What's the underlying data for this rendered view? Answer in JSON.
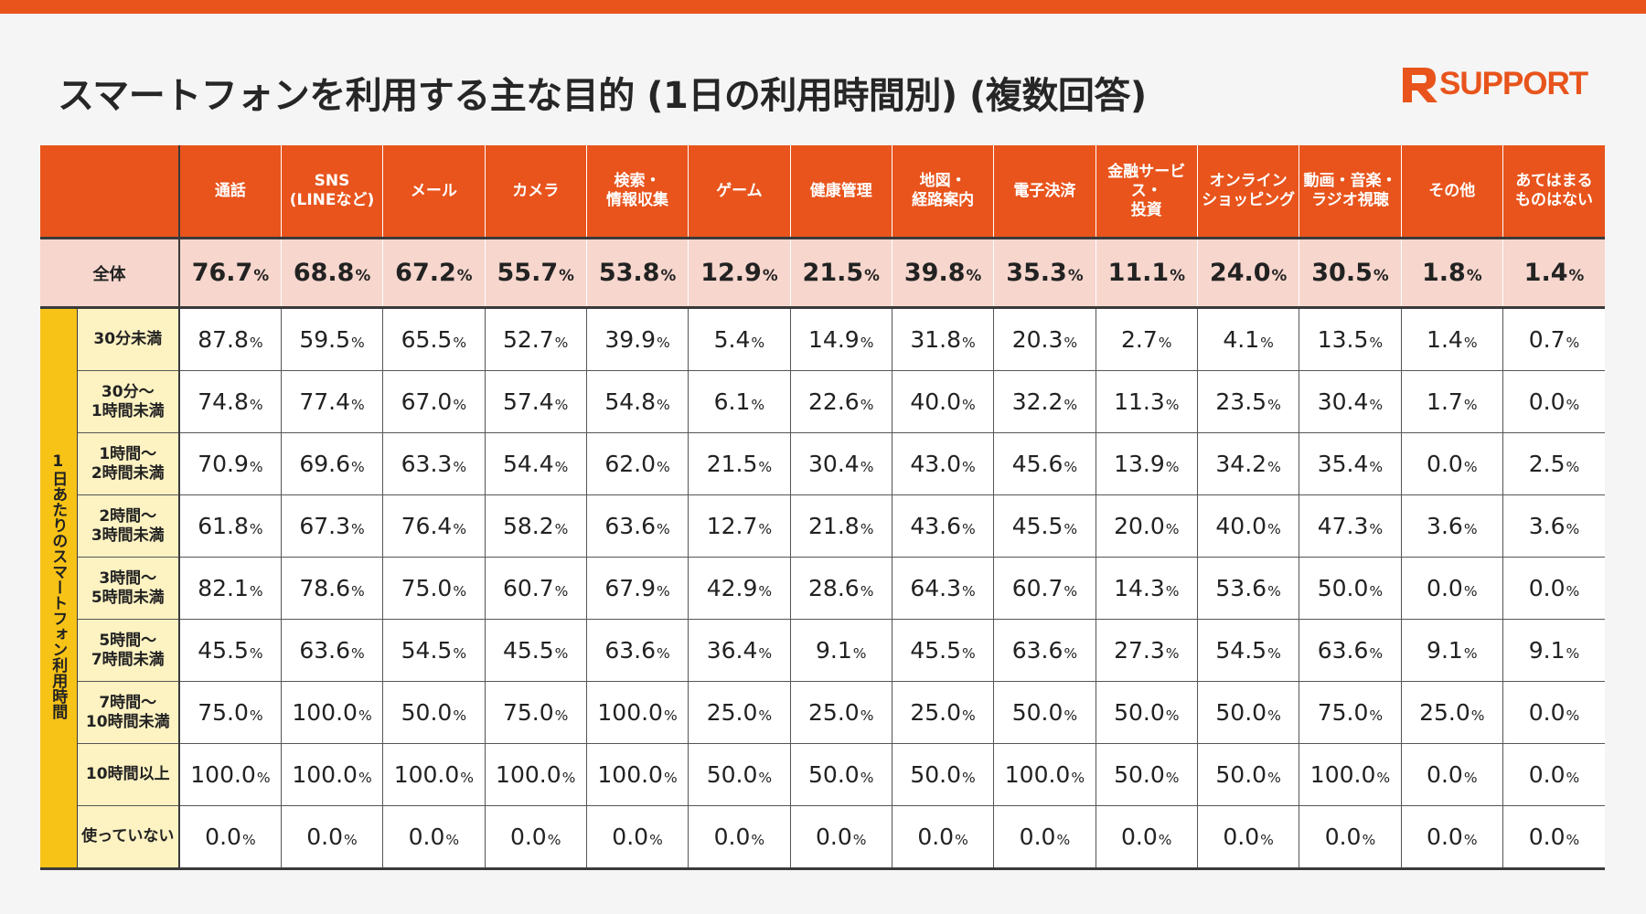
{
  "title": "スマートフォンを利用する主な目的 (1日の利用時間別) (複数回答)",
  "logo_text": "SUPPORT",
  "colors": {
    "accent": "#e8541c",
    "group": "#f7c317",
    "sub": "#fdf2c2",
    "overall": "#f6d6cd"
  },
  "percent_unit": "%",
  "group_label": "1日あたりのスマートフォン利用時間",
  "chart_data": {
    "type": "table",
    "columns": [
      [
        "通話"
      ],
      [
        "SNS",
        "(LINEなど)"
      ],
      [
        "メール"
      ],
      [
        "カメラ"
      ],
      [
        "検索・",
        "情報収集"
      ],
      [
        "ゲーム"
      ],
      [
        "健康管理"
      ],
      [
        "地図・",
        "経路案内"
      ],
      [
        "電子決済"
      ],
      [
        "金融サービス・",
        "投資"
      ],
      [
        "オンライン",
        "ショッピング"
      ],
      [
        "動画・音楽・",
        "ラジオ視聴"
      ],
      [
        "その他"
      ],
      [
        "あてはまる",
        "ものはない"
      ]
    ],
    "overall": {
      "label": "全体",
      "values": [
        "76.7",
        "68.8",
        "67.2",
        "55.7",
        "53.8",
        "12.9",
        "21.5",
        "39.8",
        "35.3",
        "11.1",
        "24.0",
        "30.5",
        "1.8",
        "1.4"
      ]
    },
    "rows": [
      {
        "label": [
          "30分未満"
        ],
        "values": [
          "87.8",
          "59.5",
          "65.5",
          "52.7",
          "39.9",
          "5.4",
          "14.9",
          "31.8",
          "20.3",
          "2.7",
          "4.1",
          "13.5",
          "1.4",
          "0.7"
        ]
      },
      {
        "label": [
          "30分～",
          "1時間未満"
        ],
        "values": [
          "74.8",
          "77.4",
          "67.0",
          "57.4",
          "54.8",
          "6.1",
          "22.6",
          "40.0",
          "32.2",
          "11.3",
          "23.5",
          "30.4",
          "1.7",
          "0.0"
        ]
      },
      {
        "label": [
          "1時間～",
          "2時間未満"
        ],
        "values": [
          "70.9",
          "69.6",
          "63.3",
          "54.4",
          "62.0",
          "21.5",
          "30.4",
          "43.0",
          "45.6",
          "13.9",
          "34.2",
          "35.4",
          "0.0",
          "2.5"
        ]
      },
      {
        "label": [
          "2時間～",
          "3時間未満"
        ],
        "values": [
          "61.8",
          "67.3",
          "76.4",
          "58.2",
          "63.6",
          "12.7",
          "21.8",
          "43.6",
          "45.5",
          "20.0",
          "40.0",
          "47.3",
          "3.6",
          "3.6"
        ]
      },
      {
        "label": [
          "3時間～",
          "5時間未満"
        ],
        "values": [
          "82.1",
          "78.6",
          "75.0",
          "60.7",
          "67.9",
          "42.9",
          "28.6",
          "64.3",
          "60.7",
          "14.3",
          "53.6",
          "50.0",
          "0.0",
          "0.0"
        ]
      },
      {
        "label": [
          "5時間～",
          "7時間未満"
        ],
        "values": [
          "45.5",
          "63.6",
          "54.5",
          "45.5",
          "63.6",
          "36.4",
          "9.1",
          "45.5",
          "63.6",
          "27.3",
          "54.5",
          "63.6",
          "9.1",
          "9.1"
        ]
      },
      {
        "label": [
          "7時間～",
          "10時間未満"
        ],
        "values": [
          "75.0",
          "100.0",
          "50.0",
          "75.0",
          "100.0",
          "25.0",
          "25.0",
          "25.0",
          "50.0",
          "50.0",
          "50.0",
          "75.0",
          "25.0",
          "0.0"
        ]
      },
      {
        "label": [
          "10時間以上"
        ],
        "values": [
          "100.0",
          "100.0",
          "100.0",
          "100.0",
          "100.0",
          "50.0",
          "50.0",
          "50.0",
          "100.0",
          "50.0",
          "50.0",
          "100.0",
          "0.0",
          "0.0"
        ]
      },
      {
        "label": [
          "使っていない"
        ],
        "values": [
          "0.0",
          "0.0",
          "0.0",
          "0.0",
          "0.0",
          "0.0",
          "0.0",
          "0.0",
          "0.0",
          "0.0",
          "0.0",
          "0.0",
          "0.0",
          "0.0"
        ]
      }
    ]
  }
}
